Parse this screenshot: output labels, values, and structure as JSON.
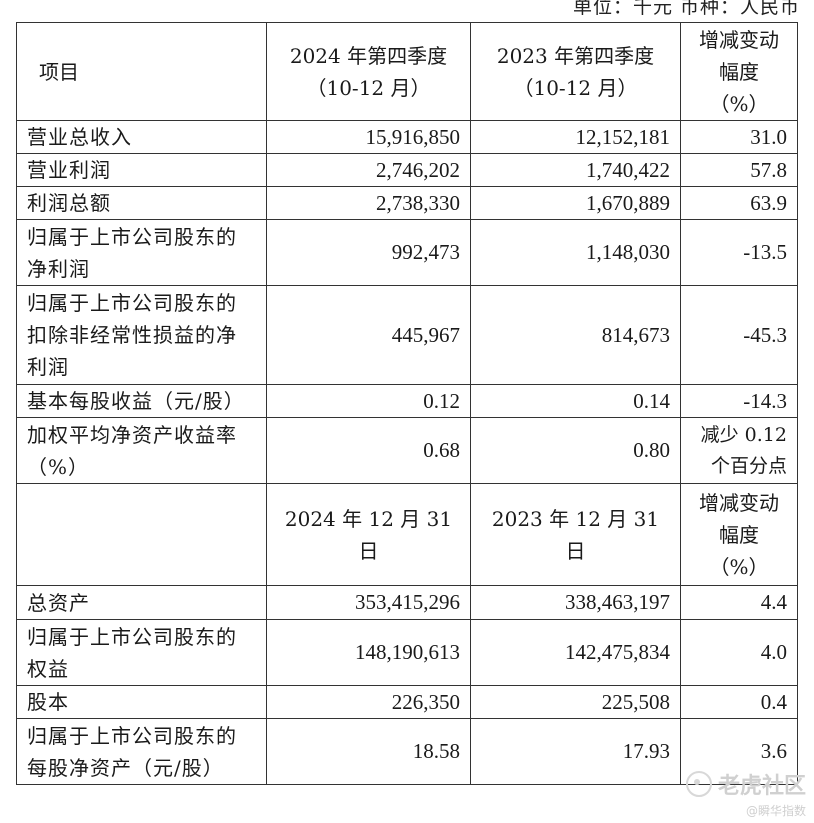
{
  "unit_text": "单位：千元  币种：人民币",
  "watermark": {
    "main": "老虎社区",
    "sub": "@瞬华指数"
  },
  "header1": {
    "item": "项目",
    "col1": [
      "2024 年第四季度",
      "（10-12 月）"
    ],
    "col2": [
      "2023 年第四季度",
      "（10-12 月）"
    ],
    "col3": [
      "增减变动",
      "幅度",
      "（%）"
    ]
  },
  "rows1": [
    {
      "item": [
        "营业总收入"
      ],
      "v2024": "15,916,850",
      "v2023": "12,152,181",
      "chg": [
        "31.0"
      ]
    },
    {
      "item": [
        "营业利润"
      ],
      "v2024": "2,746,202",
      "v2023": "1,740,422",
      "chg": [
        "57.8"
      ]
    },
    {
      "item": [
        "利润总额"
      ],
      "v2024": "2,738,330",
      "v2023": "1,670,889",
      "chg": [
        "63.9"
      ]
    },
    {
      "item": [
        "归属于上市公司股东的",
        "净利润"
      ],
      "v2024": "992,473",
      "v2023": "1,148,030",
      "chg": [
        "-13.5"
      ]
    },
    {
      "item": [
        "归属于上市公司股东的",
        "扣除非经常性损益的净",
        "利润"
      ],
      "v2024": "445,967",
      "v2023": "814,673",
      "chg": [
        "-45.3"
      ]
    },
    {
      "item": [
        "基本每股收益（元/股）"
      ],
      "v2024": "0.12",
      "v2023": "0.14",
      "chg": [
        "-14.3"
      ]
    },
    {
      "item": [
        "加权平均净资产收益率",
        "（%）"
      ],
      "v2024": "0.68",
      "v2023": "0.80",
      "chg": [
        "减少 0.12",
        "个百分点"
      ]
    }
  ],
  "header2": {
    "item": "",
    "col1": "2024 年 12 月 31 日",
    "col2": "2023 年 12 月 31 日",
    "col3": [
      "增减变动",
      "幅度",
      "（%）"
    ]
  },
  "rows2": [
    {
      "item": [
        "总资产"
      ],
      "v2024": "353,415,296",
      "v2023": "338,463,197",
      "chg": [
        "4.4"
      ]
    },
    {
      "item": [
        "归属于上市公司股东的",
        "权益"
      ],
      "v2024": "148,190,613",
      "v2023": "142,475,834",
      "chg": [
        "4.0"
      ]
    },
    {
      "item": [
        "股本"
      ],
      "v2024": "226,350",
      "v2023": "225,508",
      "chg": [
        "0.4"
      ]
    },
    {
      "item": [
        "归属于上市公司股东的",
        "每股净资产（元/股）"
      ],
      "v2024": "18.58",
      "v2023": "17.93",
      "chg": [
        "3.6"
      ]
    }
  ]
}
